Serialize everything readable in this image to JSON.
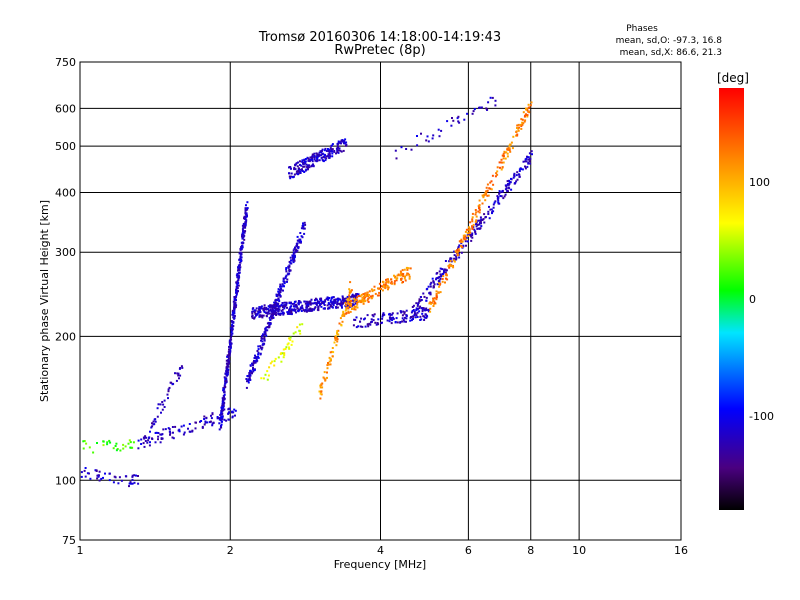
{
  "chart_data": {
    "type": "scatter",
    "title": "Tromsø 20160306 14:18:00-14:19:43",
    "subtitle": "RwPretec (8p)",
    "xlabel": "Frequency [MHz]",
    "ylabel": "Stationary phase Virtual Height [km]",
    "x_scale": "log2",
    "y_scale": "log",
    "xlim": [
      1,
      16
    ],
    "ylim": [
      75,
      750
    ],
    "x_ticks": [
      1,
      2,
      4,
      6,
      8,
      10,
      16
    ],
    "y_ticks": [
      75,
      100,
      200,
      300,
      400,
      500,
      600,
      750
    ],
    "grid": true,
    "stats": {
      "header": "Phases",
      "line1": "mean, sd,O: -97.3, 16.8",
      "line2": "mean, sd,X:  86.6, 21.3"
    },
    "colorbar": {
      "label": "[deg]",
      "ticks": [
        100,
        0,
        -100
      ],
      "range": [
        -180,
        180
      ],
      "palette": [
        "#000000",
        "#4a0080",
        "#0000ff",
        "#00e5ff",
        "#00ff00",
        "#ffff00",
        "#ff8000",
        "#ff0000"
      ]
    },
    "series": [
      {
        "x_range": [
          1.0,
          1.3
        ],
        "height_start": 105,
        "height_end": 100,
        "phase": -100,
        "count": 45
      },
      {
        "x_range": [
          1.0,
          1.3
        ],
        "height_start": 118,
        "height_end": 120,
        "phase": 40,
        "count": 30
      },
      {
        "x_range": [
          1.3,
          2.05
        ],
        "height_start": 120,
        "height_end": 140,
        "phase": -100,
        "count": 110
      },
      {
        "x_range": [
          1.35,
          1.6
        ],
        "height_start": 125,
        "height_end": 175,
        "phase": -100,
        "count": 40
      },
      {
        "x_range": [
          1.9,
          2.15
        ],
        "height_start": 130,
        "height_end": 380,
        "phase": -100,
        "count": 420
      },
      {
        "x_range": [
          2.15,
          2.8
        ],
        "height_start": 160,
        "height_end": 340,
        "phase": -100,
        "count": 260
      },
      {
        "x_range": [
          2.3,
          2.8
        ],
        "height_start": 160,
        "height_end": 215,
        "phase": 70,
        "count": 40
      },
      {
        "x_range": [
          2.2,
          3.6
        ],
        "height_start": 225,
        "height_end": 240,
        "phase": -100,
        "count": 420
      },
      {
        "x_range": [
          2.6,
          3.4
        ],
        "height_start": 440,
        "height_end": 510,
        "phase": -100,
        "count": 200
      },
      {
        "x_range": [
          3.0,
          3.5
        ],
        "height_start": 150,
        "height_end": 260,
        "phase": 120,
        "count": 80
      },
      {
        "x_range": [
          3.4,
          4.6
        ],
        "height_start": 230,
        "height_end": 275,
        "phase": 130,
        "count": 160
      },
      {
        "x_range": [
          3.5,
          5.0
        ],
        "height_start": 215,
        "height_end": 225,
        "phase": -100,
        "count": 120
      },
      {
        "x_range": [
          4.6,
          8.0
        ],
        "height_start": 225,
        "height_end": 480,
        "phase": -100,
        "count": 240
      },
      {
        "x_range": [
          5.0,
          8.0
        ],
        "height_start": 230,
        "height_end": 620,
        "phase": 130,
        "count": 220
      },
      {
        "x_range": [
          4.2,
          6.8
        ],
        "height_start": 480,
        "height_end": 630,
        "phase": -100,
        "count": 40
      }
    ]
  }
}
